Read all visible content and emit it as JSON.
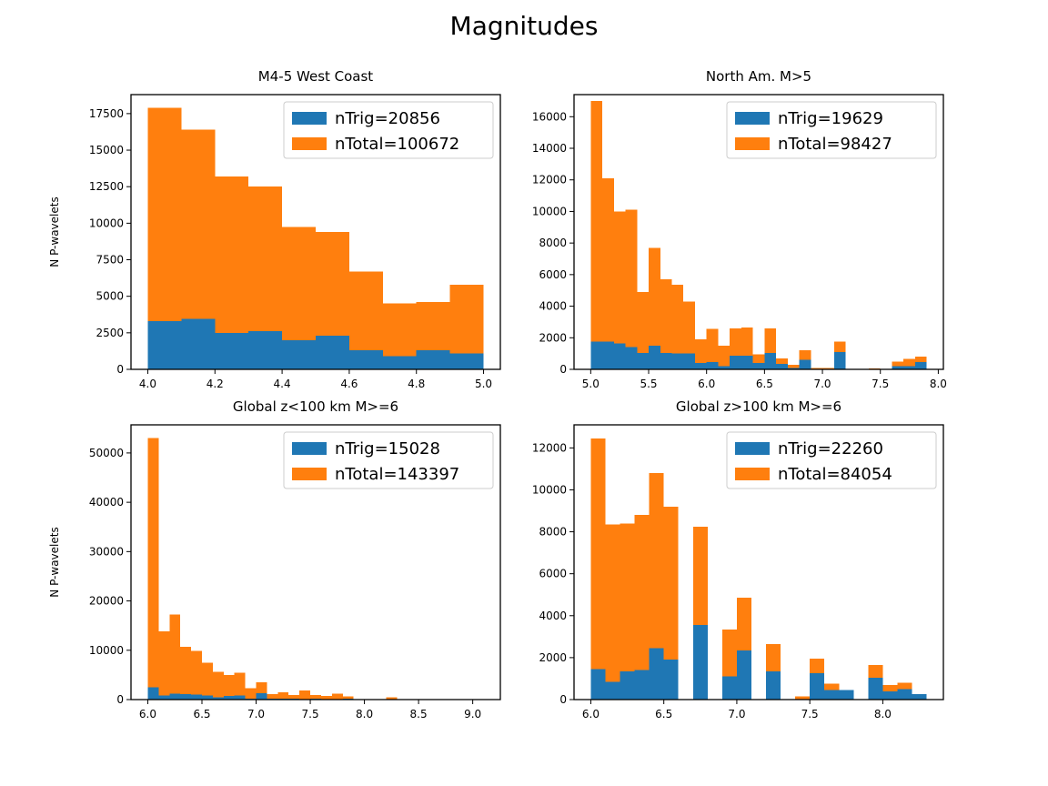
{
  "figure": {
    "title": "Magnitudes"
  },
  "colors": {
    "trig": "#1f77b4",
    "total": "#ff7f0e"
  },
  "chart_data": [
    {
      "type": "bar",
      "title": "M4-5 West Coast",
      "xlabel": "",
      "ylabel": "N P-wavelets",
      "xlim": [
        3.95,
        5.05
      ],
      "ylim": [
        0,
        18800
      ],
      "xticks": [
        4.0,
        4.2,
        4.4,
        4.6,
        4.8,
        5.0
      ],
      "xtick_labels": [
        "4.0",
        "4.2",
        "4.4",
        "4.6",
        "4.8",
        "5.0"
      ],
      "yticks": [
        0,
        2500,
        5000,
        7500,
        10000,
        12500,
        15000,
        17500
      ],
      "ytick_labels": [
        "0",
        "2500",
        "5000",
        "7500",
        "10000",
        "12500",
        "15000",
        "17500"
      ],
      "legend_position": "top-right",
      "series": [
        {
          "name": "nTrig=20856",
          "color": "#1f77b4",
          "bins": [
            [
              4.0,
              4.1,
              3300
            ],
            [
              4.1,
              4.2,
              3450
            ],
            [
              4.2,
              4.3,
              2500
            ],
            [
              4.3,
              4.4,
              2600
            ],
            [
              4.4,
              4.5,
              2000
            ],
            [
              4.5,
              4.6,
              2300
            ],
            [
              4.6,
              4.7,
              1300
            ],
            [
              4.7,
              4.8,
              900
            ],
            [
              4.8,
              4.9,
              1300
            ],
            [
              4.9,
              5.0,
              1100
            ]
          ]
        },
        {
          "name": "nTotal=100672",
          "color": "#ff7f0e",
          "bins": [
            [
              4.0,
              4.1,
              17900
            ],
            [
              4.1,
              4.2,
              16400
            ],
            [
              4.2,
              4.3,
              13200
            ],
            [
              4.3,
              4.4,
              12500
            ],
            [
              4.4,
              4.5,
              9750
            ],
            [
              4.5,
              4.6,
              9400
            ],
            [
              4.6,
              4.7,
              6700
            ],
            [
              4.7,
              4.8,
              4500
            ],
            [
              4.8,
              4.9,
              4600
            ],
            [
              4.9,
              5.0,
              5800
            ]
          ]
        }
      ]
    },
    {
      "type": "bar",
      "title": "North Am. M>5",
      "xlabel": "",
      "ylabel": "",
      "xlim": [
        4.856,
        8.044
      ],
      "ylim": [
        0,
        17400
      ],
      "xticks": [
        5.0,
        5.5,
        6.0,
        6.5,
        7.0,
        7.5,
        8.0
      ],
      "xtick_labels": [
        "5.0",
        "5.5",
        "6.0",
        "6.5",
        "7.0",
        "7.5",
        "8.0"
      ],
      "yticks": [
        0,
        2000,
        4000,
        6000,
        8000,
        10000,
        12000,
        14000,
        16000
      ],
      "ytick_labels": [
        "0",
        "2000",
        "4000",
        "6000",
        "8000",
        "10000",
        "12000",
        "14000",
        "16000"
      ],
      "legend_position": "top-right",
      "series": [
        {
          "name": "nTrig=19629",
          "color": "#1f77b4",
          "bins": [
            [
              5.0,
              5.1,
              1750
            ],
            [
              5.1,
              5.2,
              1750
            ],
            [
              5.2,
              5.3,
              1650
            ],
            [
              5.3,
              5.4,
              1400
            ],
            [
              5.4,
              5.5,
              1050
            ],
            [
              5.5,
              5.6,
              1500
            ],
            [
              5.6,
              5.7,
              1050
            ],
            [
              5.7,
              5.8,
              1000
            ],
            [
              5.8,
              5.9,
              1000
            ],
            [
              5.9,
              6.0,
              400
            ],
            [
              6.0,
              6.1,
              450
            ],
            [
              6.1,
              6.2,
              200
            ],
            [
              6.2,
              6.3,
              850
            ],
            [
              6.3,
              6.4,
              850
            ],
            [
              6.4,
              6.5,
              400
            ],
            [
              6.5,
              6.6,
              1050
            ],
            [
              6.6,
              6.7,
              350
            ],
            [
              6.7,
              6.8,
              100
            ],
            [
              6.8,
              6.9,
              600
            ],
            [
              6.9,
              7.0,
              0
            ],
            [
              7.0,
              7.1,
              0
            ],
            [
              7.1,
              7.2,
              1100
            ],
            [
              7.2,
              7.3,
              0
            ],
            [
              7.3,
              7.4,
              0
            ],
            [
              7.4,
              7.5,
              0
            ],
            [
              7.5,
              7.6,
              0
            ],
            [
              7.6,
              7.7,
              200
            ],
            [
              7.7,
              7.8,
              200
            ],
            [
              7.8,
              7.9,
              450
            ]
          ]
        },
        {
          "name": "nTotal=98427",
          "color": "#ff7f0e",
          "bins": [
            [
              5.0,
              5.1,
              17000
            ],
            [
              5.1,
              5.2,
              12100
            ],
            [
              5.2,
              5.3,
              10000
            ],
            [
              5.3,
              5.4,
              10100
            ],
            [
              5.4,
              5.5,
              4900
            ],
            [
              5.5,
              5.6,
              7700
            ],
            [
              5.6,
              5.7,
              5700
            ],
            [
              5.7,
              5.8,
              5350
            ],
            [
              5.8,
              5.9,
              4300
            ],
            [
              5.9,
              6.0,
              1900
            ],
            [
              6.0,
              6.1,
              2550
            ],
            [
              6.1,
              6.2,
              1500
            ],
            [
              6.2,
              6.3,
              2600
            ],
            [
              6.3,
              6.4,
              2650
            ],
            [
              6.4,
              6.5,
              950
            ],
            [
              6.5,
              6.6,
              2600
            ],
            [
              6.6,
              6.7,
              700
            ],
            [
              6.7,
              6.8,
              300
            ],
            [
              6.8,
              6.9,
              1200
            ],
            [
              6.9,
              7.0,
              80
            ],
            [
              7.0,
              7.1,
              100
            ],
            [
              7.1,
              7.2,
              1750
            ],
            [
              7.2,
              7.3,
              0
            ],
            [
              7.3,
              7.4,
              0
            ],
            [
              7.4,
              7.5,
              50
            ],
            [
              7.5,
              7.6,
              0
            ],
            [
              7.6,
              7.7,
              500
            ],
            [
              7.7,
              7.8,
              650
            ],
            [
              7.8,
              7.9,
              800
            ]
          ]
        }
      ]
    },
    {
      "type": "bar",
      "title": "Global z<100 km M>=6",
      "xlabel": "",
      "ylabel": "N P-wavelets",
      "xlim": [
        5.845,
        9.255
      ],
      "ylim": [
        0,
        55700
      ],
      "xticks": [
        6.0,
        6.5,
        7.0,
        7.5,
        8.0,
        8.5,
        9.0
      ],
      "xtick_labels": [
        "6.0",
        "6.5",
        "7.0",
        "7.5",
        "8.0",
        "8.5",
        "9.0"
      ],
      "yticks": [
        0,
        10000,
        20000,
        30000,
        40000,
        50000
      ],
      "ytick_labels": [
        "0",
        "10000",
        "20000",
        "30000",
        "40000",
        "50000"
      ],
      "legend_position": "top-right",
      "series": [
        {
          "name": "nTrig=15028",
          "color": "#1f77b4",
          "bins": [
            [
              6.0,
              6.1,
              2500
            ],
            [
              6.1,
              6.2,
              800
            ],
            [
              6.2,
              6.3,
              1200
            ],
            [
              6.3,
              6.4,
              1100
            ],
            [
              6.4,
              6.5,
              1000
            ],
            [
              6.5,
              6.6,
              800
            ],
            [
              6.6,
              6.7,
              500
            ],
            [
              6.7,
              6.8,
              700
            ],
            [
              6.8,
              6.9,
              800
            ],
            [
              6.9,
              7.0,
              200
            ],
            [
              7.0,
              7.1,
              1300
            ],
            [
              7.1,
              7.2,
              200
            ],
            [
              7.2,
              7.3,
              200
            ],
            [
              7.3,
              7.4,
              150
            ],
            [
              7.4,
              7.5,
              100
            ],
            [
              7.5,
              7.6,
              200
            ],
            [
              7.6,
              7.7,
              100
            ],
            [
              7.7,
              7.8,
              50
            ],
            [
              7.8,
              7.9,
              150
            ],
            [
              7.9,
              8.0,
              50
            ],
            [
              8.0,
              8.1,
              0
            ],
            [
              8.1,
              8.2,
              0
            ],
            [
              8.2,
              8.3,
              50
            ]
          ]
        },
        {
          "name": "nTotal=143397",
          "color": "#ff7f0e",
          "bins": [
            [
              6.0,
              6.1,
              53000
            ],
            [
              6.1,
              6.2,
              13800
            ],
            [
              6.2,
              6.3,
              17200
            ],
            [
              6.3,
              6.4,
              10700
            ],
            [
              6.4,
              6.5,
              9900
            ],
            [
              6.5,
              6.6,
              7500
            ],
            [
              6.6,
              6.7,
              5600
            ],
            [
              6.7,
              6.8,
              5000
            ],
            [
              6.8,
              6.9,
              5400
            ],
            [
              6.9,
              7.0,
              2300
            ],
            [
              7.0,
              7.1,
              3500
            ],
            [
              7.1,
              7.2,
              1100
            ],
            [
              7.2,
              7.3,
              1500
            ],
            [
              7.3,
              7.4,
              900
            ],
            [
              7.4,
              7.5,
              1800
            ],
            [
              7.5,
              7.6,
              900
            ],
            [
              7.6,
              7.7,
              700
            ],
            [
              7.7,
              7.8,
              1200
            ],
            [
              7.8,
              7.9,
              600
            ],
            [
              7.9,
              8.0,
              100
            ],
            [
              8.0,
              8.1,
              0
            ],
            [
              8.1,
              8.2,
              0
            ],
            [
              8.2,
              8.3,
              500
            ],
            [
              8.3,
              8.4,
              0
            ],
            [
              8.4,
              8.5,
              0
            ],
            [
              8.5,
              8.6,
              0
            ],
            [
              8.6,
              8.7,
              0
            ],
            [
              8.7,
              8.8,
              0
            ],
            [
              8.8,
              8.9,
              0
            ],
            [
              8.9,
              9.0,
              0
            ],
            [
              9.0,
              9.1,
              50
            ]
          ]
        }
      ]
    },
    {
      "type": "bar",
      "title": "Global z>100 km M>=6",
      "xlabel": "",
      "ylabel": "",
      "xlim": [
        5.885,
        8.415
      ],
      "ylim": [
        0,
        13100
      ],
      "xticks": [
        6.0,
        6.5,
        7.0,
        7.5,
        8.0
      ],
      "xtick_labels": [
        "6.0",
        "6.5",
        "7.0",
        "7.5",
        "8.0"
      ],
      "yticks": [
        0,
        2000,
        4000,
        6000,
        8000,
        10000,
        12000
      ],
      "ytick_labels": [
        "0",
        "2000",
        "4000",
        "6000",
        "8000",
        "10000",
        "12000"
      ],
      "legend_position": "top-right",
      "series": [
        {
          "name": "nTrig=22260",
          "color": "#1f77b4",
          "bins": [
            [
              6.0,
              6.1,
              1450
            ],
            [
              6.1,
              6.2,
              850
            ],
            [
              6.2,
              6.3,
              1350
            ],
            [
              6.3,
              6.4,
              1400
            ],
            [
              6.4,
              6.5,
              2450
            ],
            [
              6.5,
              6.6,
              1900
            ],
            [
              6.7,
              6.8,
              3550
            ],
            [
              6.9,
              7.0,
              1100
            ],
            [
              7.0,
              7.1,
              2350
            ],
            [
              7.2,
              7.3,
              1350
            ],
            [
              7.4,
              7.5,
              0
            ],
            [
              7.5,
              7.6,
              1250
            ],
            [
              7.6,
              7.7,
              450
            ],
            [
              7.7,
              7.8,
              450
            ],
            [
              7.9,
              8.0,
              1050
            ],
            [
              8.0,
              8.1,
              400
            ],
            [
              8.1,
              8.2,
              500
            ],
            [
              8.2,
              8.3,
              250
            ]
          ]
        },
        {
          "name": "nTotal=84054",
          "color": "#ff7f0e",
          "bins": [
            [
              6.0,
              6.1,
              12450
            ],
            [
              6.1,
              6.2,
              8350
            ],
            [
              6.2,
              6.3,
              8400
            ],
            [
              6.3,
              6.4,
              8800
            ],
            [
              6.4,
              6.5,
              10800
            ],
            [
              6.5,
              6.6,
              9200
            ],
            [
              6.7,
              6.8,
              8250
            ],
            [
              6.9,
              7.0,
              3350
            ],
            [
              7.0,
              7.1,
              4850
            ],
            [
              7.2,
              7.3,
              2650
            ],
            [
              7.4,
              7.5,
              150
            ],
            [
              7.5,
              7.6,
              1950
            ],
            [
              7.6,
              7.7,
              750
            ],
            [
              7.7,
              7.8,
              350
            ],
            [
              7.9,
              8.0,
              1650
            ],
            [
              8.0,
              8.1,
              700
            ],
            [
              8.1,
              8.2,
              800
            ],
            [
              8.2,
              8.3,
              50
            ]
          ]
        }
      ]
    }
  ]
}
